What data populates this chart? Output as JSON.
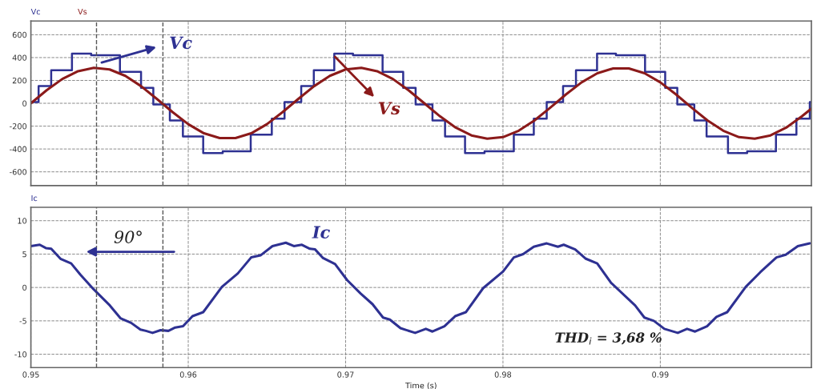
{
  "chart_data": [
    {
      "type": "line",
      "xlim": [
        0.95,
        0.9996
      ],
      "xticks": [
        0.95,
        0.96,
        0.97,
        0.98,
        0.99
      ],
      "ylim": [
        -720,
        720
      ],
      "yticks": [
        -600,
        -400,
        -200,
        0,
        200,
        400,
        600
      ],
      "grid": true,
      "tick_labels": "y",
      "series": [
        {
          "name": "Vc",
          "type": "step",
          "color": "#2e3192",
          "x": [
            0.95,
            0.95049,
            0.95129,
            0.95261,
            0.95383,
            0.95566,
            0.957,
            0.95778,
            0.95883,
            0.95966,
            0.96095,
            0.96219,
            0.96397,
            0.96531,
            0.96612,
            0.96718,
            0.96798,
            0.96928,
            0.97047,
            0.97235,
            0.97366,
            0.97445,
            0.97552,
            0.97632,
            0.97759,
            0.97883,
            0.98069,
            0.98196,
            0.98278,
            0.98382,
            0.98464,
            0.98598,
            0.98718,
            0.98903,
            0.99031,
            0.99108,
            0.99216,
            0.99294,
            0.9943,
            0.99552,
            0.99735,
            0.99865,
            0.9995,
            0.9996
          ],
          "values": [
            10,
            150,
            290,
            435,
            420,
            275,
            135,
            -10,
            -150,
            -290,
            -435,
            -420,
            -275,
            -135,
            10,
            150,
            290,
            435,
            420,
            275,
            135,
            -10,
            -150,
            -290,
            -435,
            -420,
            -275,
            -135,
            10,
            150,
            290,
            435,
            420,
            275,
            135,
            -10,
            -150,
            -290,
            -435,
            -420,
            -275,
            -135,
            10,
            10
          ]
        },
        {
          "name": "Vs",
          "color": "#8b1a1a",
          "x": [
            0.95,
            0.951,
            0.952,
            0.953,
            0.954,
            0.955,
            0.956,
            0.957,
            0.958,
            0.959,
            0.96,
            0.961,
            0.962,
            0.963,
            0.964,
            0.965,
            0.966,
            0.967,
            0.968,
            0.969,
            0.97,
            0.971,
            0.972,
            0.973,
            0.974,
            0.975,
            0.976,
            0.977,
            0.978,
            0.979,
            0.98,
            0.981,
            0.982,
            0.983,
            0.984,
            0.985,
            0.986,
            0.987,
            0.988,
            0.989,
            0.99,
            0.991,
            0.992,
            0.993,
            0.994,
            0.995,
            0.996,
            0.997,
            0.998,
            0.999,
            0.9996
          ],
          "values": [
            0,
            114,
            213,
            281,
            310,
            296,
            240,
            150,
            39,
            -77,
            -183,
            -263,
            -305,
            -305,
            -263,
            -183,
            -77,
            39,
            150,
            240,
            296,
            310,
            281,
            213,
            114,
            0,
            -114,
            -213,
            -281,
            -310,
            -296,
            -240,
            -150,
            -39,
            77,
            183,
            263,
            305,
            305,
            263,
            183,
            77,
            -39,
            -150,
            -240,
            -296,
            -310,
            -281,
            -213,
            -114,
            -47
          ]
        }
      ],
      "annotations": [
        "Vc",
        "Vs"
      ],
      "ref_lines": [
        {
          "axis": "x",
          "value": 0.95417,
          "color": "#555555",
          "line_style": "dashed"
        },
        {
          "axis": "x",
          "value": 0.95839,
          "color": "#555555",
          "line_style": "dashed"
        }
      ]
    },
    {
      "type": "line",
      "xlabel": "Time (s)",
      "xlim": [
        0.95,
        0.9996
      ],
      "xticks": [
        0.95,
        0.96,
        0.97,
        0.98,
        0.99
      ],
      "ylim": [
        -12,
        12
      ],
      "yticks": [
        -10,
        -5,
        0,
        5,
        10
      ],
      "grid": true,
      "series": [
        {
          "name": "Ic",
          "color": "#2e3192",
          "x": [
            0.95,
            0.95056,
            0.95095,
            0.95129,
            0.95188,
            0.95256,
            0.95315,
            0.954,
            0.95502,
            0.95569,
            0.95637,
            0.95696,
            0.95731,
            0.95773,
            0.95824,
            0.95874,
            0.95917,
            0.95967,
            0.96027,
            0.96095,
            0.96214,
            0.96315,
            0.964,
            0.96459,
            0.96535,
            0.9662,
            0.96671,
            0.96722,
            0.96773,
            0.96806,
            0.96857,
            0.96933,
            0.9701,
            0.97095,
            0.97171,
            0.97238,
            0.97281,
            0.97349,
            0.97442,
            0.9751,
            0.97552,
            0.97628,
            0.97696,
            0.97764,
            0.97874,
            0.98001,
            0.98069,
            0.98128,
            0.98196,
            0.98278,
            0.98349,
            0.98386,
            0.98459,
            0.98527,
            0.98599,
            0.98687,
            0.9884,
            0.98899,
            0.98959,
            0.99026,
            0.99111,
            0.9917,
            0.99221,
            0.99297,
            0.99357,
            0.99425,
            0.99543,
            0.99636,
            0.99738,
            0.99797,
            0.99874,
            0.9995
          ],
          "values": [
            6.2,
            6.4,
            5.9,
            5.8,
            4.3,
            3.6,
            1.9,
            -0.3,
            -2.7,
            -4.6,
            -5.3,
            -6.3,
            -6.5,
            -6.8,
            -6.4,
            -6.5,
            -6.0,
            -5.8,
            -4.3,
            -3.7,
            0.1,
            2.1,
            4.5,
            4.8,
            6.2,
            6.7,
            6.2,
            6.4,
            5.8,
            5.7,
            4.4,
            3.5,
            1.1,
            -0.9,
            -2.5,
            -4.5,
            -4.8,
            -6.1,
            -6.8,
            -6.2,
            -6.6,
            -5.8,
            -4.3,
            -3.7,
            -0.1,
            2.4,
            4.5,
            5.0,
            6.1,
            6.6,
            6.1,
            6.4,
            5.7,
            4.3,
            3.6,
            0.7,
            -2.7,
            -4.5,
            -5.0,
            -6.2,
            -6.8,
            -6.2,
            -6.6,
            -5.8,
            -4.4,
            -3.7,
            0.1,
            2.3,
            4.5,
            4.9,
            6.2,
            6.6
          ]
        }
      ],
      "annotations": [
        "Ic",
        "90°",
        "THD$_{i}$ = 3,68 %"
      ],
      "ref_lines": [
        {
          "axis": "x",
          "value": 0.95417,
          "color": "#555555",
          "line_style": "dashed"
        },
        {
          "axis": "x",
          "value": 0.95839,
          "color": "#555555",
          "line_style": "dashed"
        }
      ]
    }
  ]
}
